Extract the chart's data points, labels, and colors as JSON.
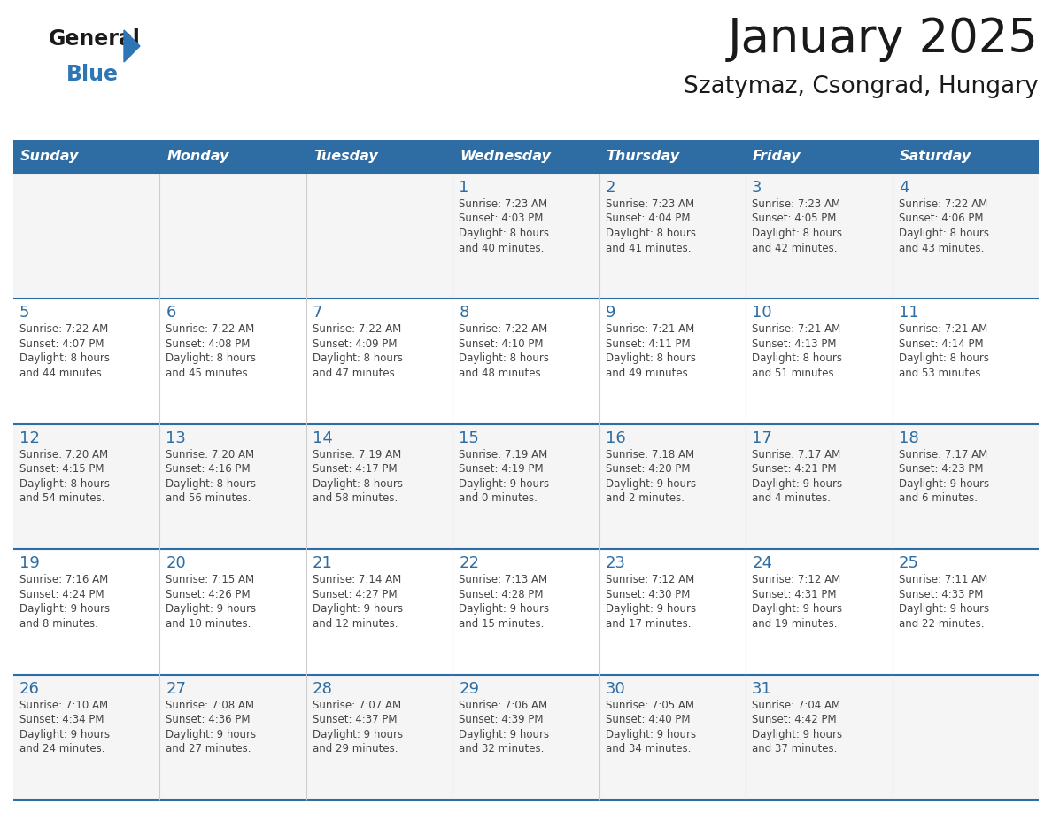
{
  "title": "January 2025",
  "subtitle": "Szatymaz, Csongrad, Hungary",
  "days_of_week": [
    "Sunday",
    "Monday",
    "Tuesday",
    "Wednesday",
    "Thursday",
    "Friday",
    "Saturday"
  ],
  "header_bg": "#2E6DA4",
  "header_text": "#FFFFFF",
  "cell_bg_odd": "#F5F5F5",
  "cell_bg_even": "#FFFFFF",
  "border_color": "#2E6DA4",
  "day_num_color": "#2E6DA4",
  "cell_text_color": "#444444",
  "title_color": "#1a1a1a",
  "logo_general_color": "#1a1a1a",
  "logo_blue_color": "#2E75B6",
  "weeks": [
    [
      {
        "num": "",
        "lines": []
      },
      {
        "num": "",
        "lines": []
      },
      {
        "num": "",
        "lines": []
      },
      {
        "num": "1",
        "lines": [
          "Sunrise: 7:23 AM",
          "Sunset: 4:03 PM",
          "Daylight: 8 hours",
          "and 40 minutes."
        ]
      },
      {
        "num": "2",
        "lines": [
          "Sunrise: 7:23 AM",
          "Sunset: 4:04 PM",
          "Daylight: 8 hours",
          "and 41 minutes."
        ]
      },
      {
        "num": "3",
        "lines": [
          "Sunrise: 7:23 AM",
          "Sunset: 4:05 PM",
          "Daylight: 8 hours",
          "and 42 minutes."
        ]
      },
      {
        "num": "4",
        "lines": [
          "Sunrise: 7:22 AM",
          "Sunset: 4:06 PM",
          "Daylight: 8 hours",
          "and 43 minutes."
        ]
      }
    ],
    [
      {
        "num": "5",
        "lines": [
          "Sunrise: 7:22 AM",
          "Sunset: 4:07 PM",
          "Daylight: 8 hours",
          "and 44 minutes."
        ]
      },
      {
        "num": "6",
        "lines": [
          "Sunrise: 7:22 AM",
          "Sunset: 4:08 PM",
          "Daylight: 8 hours",
          "and 45 minutes."
        ]
      },
      {
        "num": "7",
        "lines": [
          "Sunrise: 7:22 AM",
          "Sunset: 4:09 PM",
          "Daylight: 8 hours",
          "and 47 minutes."
        ]
      },
      {
        "num": "8",
        "lines": [
          "Sunrise: 7:22 AM",
          "Sunset: 4:10 PM",
          "Daylight: 8 hours",
          "and 48 minutes."
        ]
      },
      {
        "num": "9",
        "lines": [
          "Sunrise: 7:21 AM",
          "Sunset: 4:11 PM",
          "Daylight: 8 hours",
          "and 49 minutes."
        ]
      },
      {
        "num": "10",
        "lines": [
          "Sunrise: 7:21 AM",
          "Sunset: 4:13 PM",
          "Daylight: 8 hours",
          "and 51 minutes."
        ]
      },
      {
        "num": "11",
        "lines": [
          "Sunrise: 7:21 AM",
          "Sunset: 4:14 PM",
          "Daylight: 8 hours",
          "and 53 minutes."
        ]
      }
    ],
    [
      {
        "num": "12",
        "lines": [
          "Sunrise: 7:20 AM",
          "Sunset: 4:15 PM",
          "Daylight: 8 hours",
          "and 54 minutes."
        ]
      },
      {
        "num": "13",
        "lines": [
          "Sunrise: 7:20 AM",
          "Sunset: 4:16 PM",
          "Daylight: 8 hours",
          "and 56 minutes."
        ]
      },
      {
        "num": "14",
        "lines": [
          "Sunrise: 7:19 AM",
          "Sunset: 4:17 PM",
          "Daylight: 8 hours",
          "and 58 minutes."
        ]
      },
      {
        "num": "15",
        "lines": [
          "Sunrise: 7:19 AM",
          "Sunset: 4:19 PM",
          "Daylight: 9 hours",
          "and 0 minutes."
        ]
      },
      {
        "num": "16",
        "lines": [
          "Sunrise: 7:18 AM",
          "Sunset: 4:20 PM",
          "Daylight: 9 hours",
          "and 2 minutes."
        ]
      },
      {
        "num": "17",
        "lines": [
          "Sunrise: 7:17 AM",
          "Sunset: 4:21 PM",
          "Daylight: 9 hours",
          "and 4 minutes."
        ]
      },
      {
        "num": "18",
        "lines": [
          "Sunrise: 7:17 AM",
          "Sunset: 4:23 PM",
          "Daylight: 9 hours",
          "and 6 minutes."
        ]
      }
    ],
    [
      {
        "num": "19",
        "lines": [
          "Sunrise: 7:16 AM",
          "Sunset: 4:24 PM",
          "Daylight: 9 hours",
          "and 8 minutes."
        ]
      },
      {
        "num": "20",
        "lines": [
          "Sunrise: 7:15 AM",
          "Sunset: 4:26 PM",
          "Daylight: 9 hours",
          "and 10 minutes."
        ]
      },
      {
        "num": "21",
        "lines": [
          "Sunrise: 7:14 AM",
          "Sunset: 4:27 PM",
          "Daylight: 9 hours",
          "and 12 minutes."
        ]
      },
      {
        "num": "22",
        "lines": [
          "Sunrise: 7:13 AM",
          "Sunset: 4:28 PM",
          "Daylight: 9 hours",
          "and 15 minutes."
        ]
      },
      {
        "num": "23",
        "lines": [
          "Sunrise: 7:12 AM",
          "Sunset: 4:30 PM",
          "Daylight: 9 hours",
          "and 17 minutes."
        ]
      },
      {
        "num": "24",
        "lines": [
          "Sunrise: 7:12 AM",
          "Sunset: 4:31 PM",
          "Daylight: 9 hours",
          "and 19 minutes."
        ]
      },
      {
        "num": "25",
        "lines": [
          "Sunrise: 7:11 AM",
          "Sunset: 4:33 PM",
          "Daylight: 9 hours",
          "and 22 minutes."
        ]
      }
    ],
    [
      {
        "num": "26",
        "lines": [
          "Sunrise: 7:10 AM",
          "Sunset: 4:34 PM",
          "Daylight: 9 hours",
          "and 24 minutes."
        ]
      },
      {
        "num": "27",
        "lines": [
          "Sunrise: 7:08 AM",
          "Sunset: 4:36 PM",
          "Daylight: 9 hours",
          "and 27 minutes."
        ]
      },
      {
        "num": "28",
        "lines": [
          "Sunrise: 7:07 AM",
          "Sunset: 4:37 PM",
          "Daylight: 9 hours",
          "and 29 minutes."
        ]
      },
      {
        "num": "29",
        "lines": [
          "Sunrise: 7:06 AM",
          "Sunset: 4:39 PM",
          "Daylight: 9 hours",
          "and 32 minutes."
        ]
      },
      {
        "num": "30",
        "lines": [
          "Sunrise: 7:05 AM",
          "Sunset: 4:40 PM",
          "Daylight: 9 hours",
          "and 34 minutes."
        ]
      },
      {
        "num": "31",
        "lines": [
          "Sunrise: 7:04 AM",
          "Sunset: 4:42 PM",
          "Daylight: 9 hours",
          "and 37 minutes."
        ]
      },
      {
        "num": "",
        "lines": []
      }
    ]
  ]
}
